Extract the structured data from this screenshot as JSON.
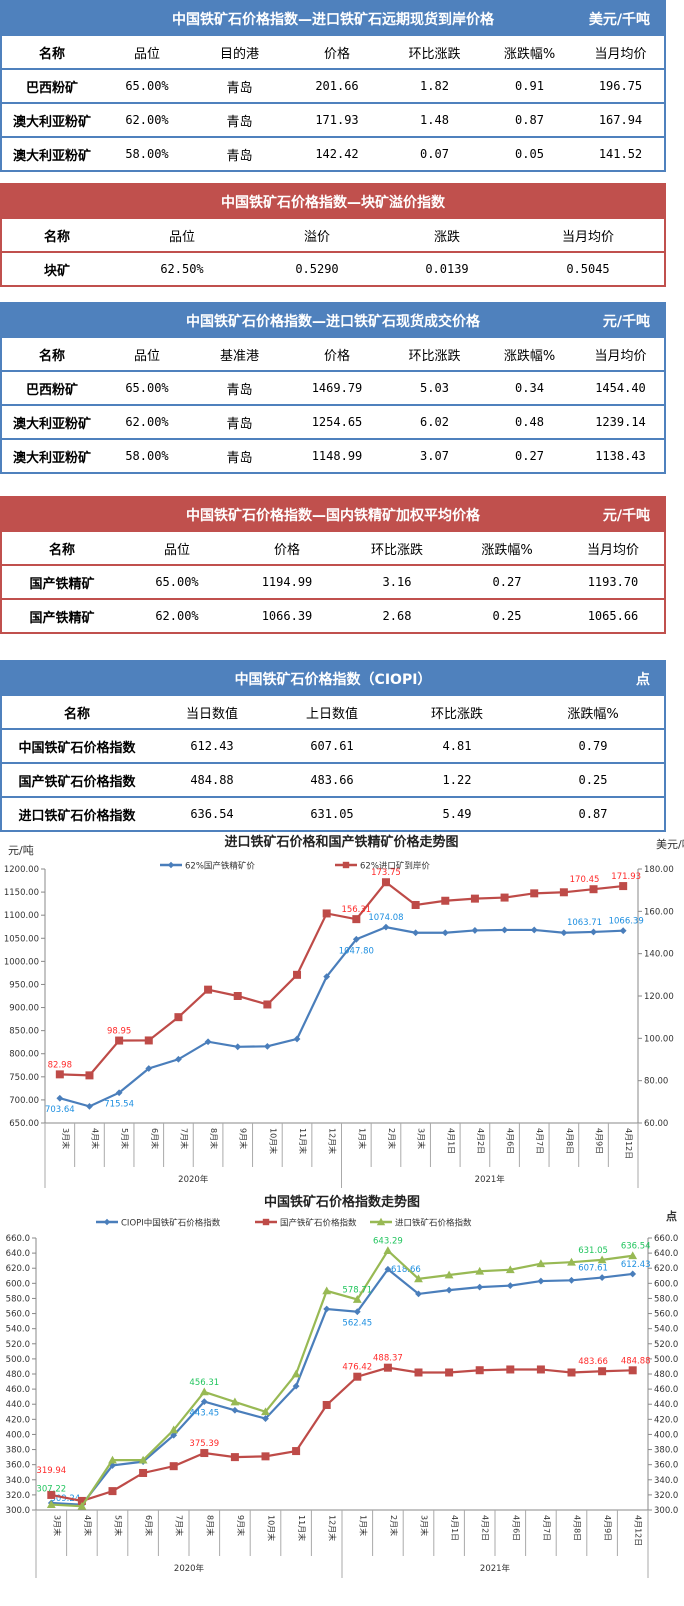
{
  "tables": [
    {
      "id": "t1",
      "color": "blue",
      "title": "中国铁矿石价格指数—进口铁矿石远期现货到岸价格",
      "unit": "美元/千吨",
      "headers": [
        "名称",
        "品位",
        "目的港",
        "价格",
        "环比涨跌",
        "涨跌幅%",
        "当月均价"
      ],
      "rows": [
        [
          "巴西粉矿",
          "65.00%",
          "青岛",
          "201.66",
          "1.82",
          "0.91",
          "196.75"
        ],
        [
          "澳大利亚粉矿",
          "62.00%",
          "青岛",
          "171.93",
          "1.48",
          "0.87",
          "167.94"
        ],
        [
          "澳大利亚粉矿",
          "58.00%",
          "青岛",
          "142.42",
          "0.07",
          "0.05",
          "141.52"
        ]
      ]
    },
    {
      "id": "t2",
      "color": "red",
      "title": "中国铁矿石价格指数—块矿溢价指数",
      "unit": "",
      "headers": [
        "名称",
        "品位",
        "溢价",
        "涨跌",
        "当月均价"
      ],
      "rows": [
        [
          "块矿",
          "62.50%",
          "0.5290",
          "0.0139",
          "0.5045"
        ]
      ]
    },
    {
      "id": "t3",
      "color": "blue",
      "title": "中国铁矿石价格指数—进口铁矿石现货成交价格",
      "unit": "元/千吨",
      "headers": [
        "名称",
        "品位",
        "基准港",
        "价格",
        "环比涨跌",
        "涨跌幅%",
        "当月均价"
      ],
      "rows": [
        [
          "巴西粉矿",
          "65.00%",
          "青岛",
          "1469.79",
          "5.03",
          "0.34",
          "1454.40"
        ],
        [
          "澳大利亚粉矿",
          "62.00%",
          "青岛",
          "1254.65",
          "6.02",
          "0.48",
          "1239.14"
        ],
        [
          "澳大利亚粉矿",
          "58.00%",
          "青岛",
          "1148.99",
          "3.07",
          "0.27",
          "1138.43"
        ]
      ]
    },
    {
      "id": "t4",
      "color": "red",
      "title": "中国铁矿石价格指数—国内铁精矿加权平均价格",
      "unit": "元/千吨",
      "headers": [
        "名称",
        "品位",
        "价格",
        "环比涨跌",
        "涨跌幅%",
        "当月均价"
      ],
      "rows": [
        [
          "国产铁精矿",
          "65.00%",
          "1194.99",
          "3.16",
          "0.27",
          "1193.70"
        ],
        [
          "国产铁精矿",
          "62.00%",
          "1066.39",
          "2.68",
          "0.25",
          "1065.66"
        ]
      ]
    },
    {
      "id": "t5",
      "color": "blue",
      "title": "中国铁矿石价格指数（CIOPI）",
      "unit": "点",
      "headers": [
        "名称",
        "当日数值",
        "上日数值",
        "环比涨跌",
        "涨跌幅%"
      ],
      "rows": [
        [
          "中国铁矿石价格指数",
          "612.43",
          "607.61",
          "4.81",
          "0.79"
        ],
        [
          "国产铁矿石价格指数",
          "484.88",
          "483.66",
          "1.22",
          "0.25"
        ],
        [
          "进口铁矿石价格指数",
          "636.54",
          "631.05",
          "5.49",
          "0.87"
        ]
      ]
    }
  ],
  "chart_data": [
    {
      "type": "line",
      "title": "进口铁矿石价格和国产铁精矿价格走势图",
      "ylabel": "元/吨",
      "y2label": "美元/吨",
      "categories": [
        "3月末",
        "4月末",
        "5月末",
        "6月末",
        "7月末",
        "8月末",
        "9月末",
        "10月末",
        "11月末",
        "12月末",
        "1月末",
        "2月末",
        "3月末",
        "4月1日",
        "4月2日",
        "4月6日",
        "4月7日",
        "4月8日",
        "4月9日",
        "4月12日"
      ],
      "groups": [
        {
          "label": "2020年",
          "count": 10
        },
        {
          "label": "2021年",
          "count": 10
        }
      ],
      "ylim": [
        650,
        1200
      ],
      "ystep": 50,
      "y2lim": [
        60,
        180
      ],
      "y2step": 20,
      "legend": "top",
      "series": [
        {
          "name": "62%国产铁精矿价",
          "axis": "left",
          "color": "#4a7ebb",
          "marker": "diamond",
          "labelColor": "#1e8fe0",
          "values": [
            703.64,
            686,
            715.54,
            768,
            788,
            826,
            815,
            816,
            832,
            967,
            1047.8,
            1074.08,
            1062,
            1062,
            1067,
            1068,
            1068,
            1062,
            1063.71,
            1066.39
          ],
          "labels": {
            "0": "703.64",
            "2": "715.54",
            "10": "1047.80",
            "11": "1074.08",
            "18": "1063.71",
            "19": "1066.39"
          }
        },
        {
          "name": "62%进口矿到岸价",
          "axis": "right",
          "color": "#be4b48",
          "marker": "square",
          "labelColor": "#ff2a2a",
          "values": [
            82.98,
            82.5,
            98.95,
            99,
            110,
            123,
            120,
            116,
            130,
            159,
            156.31,
            173.75,
            163,
            165,
            166,
            166.5,
            168.5,
            169,
            170.45,
            171.93
          ],
          "labels": {
            "0": "82.98",
            "2": "98.95",
            "10": "156.31",
            "11": "173.75",
            "18": "170.45",
            "19": "171.93"
          }
        }
      ]
    },
    {
      "type": "line",
      "title": "中国铁矿石价格指数走势图",
      "y2label": "点",
      "categories": [
        "3月末",
        "4月末",
        "5月末",
        "6月末",
        "7月末",
        "8月末",
        "9月末",
        "10月末",
        "11月末",
        "12月末",
        "1月末",
        "2月末",
        "3月末",
        "4月1日",
        "4月2日",
        "4月6日",
        "4月7日",
        "4月8日",
        "4月9日",
        "4月12日"
      ],
      "groups": [
        {
          "label": "2020年",
          "count": 10
        },
        {
          "label": "2021年",
          "count": 10
        }
      ],
      "ylim": [
        300,
        660
      ],
      "ystep": 20,
      "y2lim": [
        300,
        660
      ],
      "y2step": 20,
      "legend": "top",
      "series": [
        {
          "name": "CIOPI中国铁矿石价格指数",
          "axis": "left",
          "color": "#4a7ebb",
          "marker": "diamond",
          "labelColor": "#1e8fe0",
          "values": [
            309.24,
            307,
            359,
            364,
            399,
            443.45,
            432,
            421,
            464,
            566,
            562.45,
            618.66,
            586,
            591,
            595,
            597,
            603,
            604,
            607.61,
            612.43
          ],
          "labels": {
            "0": "309.24",
            "5": "443.45",
            "10": "562.45",
            "11": "618.66",
            "18": "607.61",
            "19": "612.43"
          }
        },
        {
          "name": "国产铁矿石价格指数",
          "axis": "left",
          "color": "#be4b48",
          "marker": "square",
          "labelColor": "#ff2a2a",
          "values": [
            319.94,
            312,
            325,
            349,
            358,
            375.39,
            370,
            371,
            378,
            439,
            476.42,
            488.37,
            482,
            482,
            485,
            486,
            486,
            482,
            483.66,
            484.88
          ],
          "labels": {
            "0": "319.94",
            "5": "375.39",
            "10": "476.42",
            "11": "488.37",
            "18": "483.66",
            "19": "484.88"
          }
        },
        {
          "name": "进口铁矿石价格指数",
          "axis": "left",
          "color": "#98b954",
          "marker": "triangle",
          "labelColor": "#22c55e",
          "values": [
            307.22,
            305,
            366,
            366,
            406,
            456.31,
            443,
            430,
            480,
            590,
            578.71,
            643.29,
            606,
            611,
            616,
            618,
            626,
            628,
            631.05,
            636.54
          ],
          "labels": {
            "0": "307.22",
            "5": "456.31",
            "10": "578.71",
            "11": "643.29",
            "18": "631.05",
            "19": "636.54"
          }
        }
      ]
    }
  ]
}
